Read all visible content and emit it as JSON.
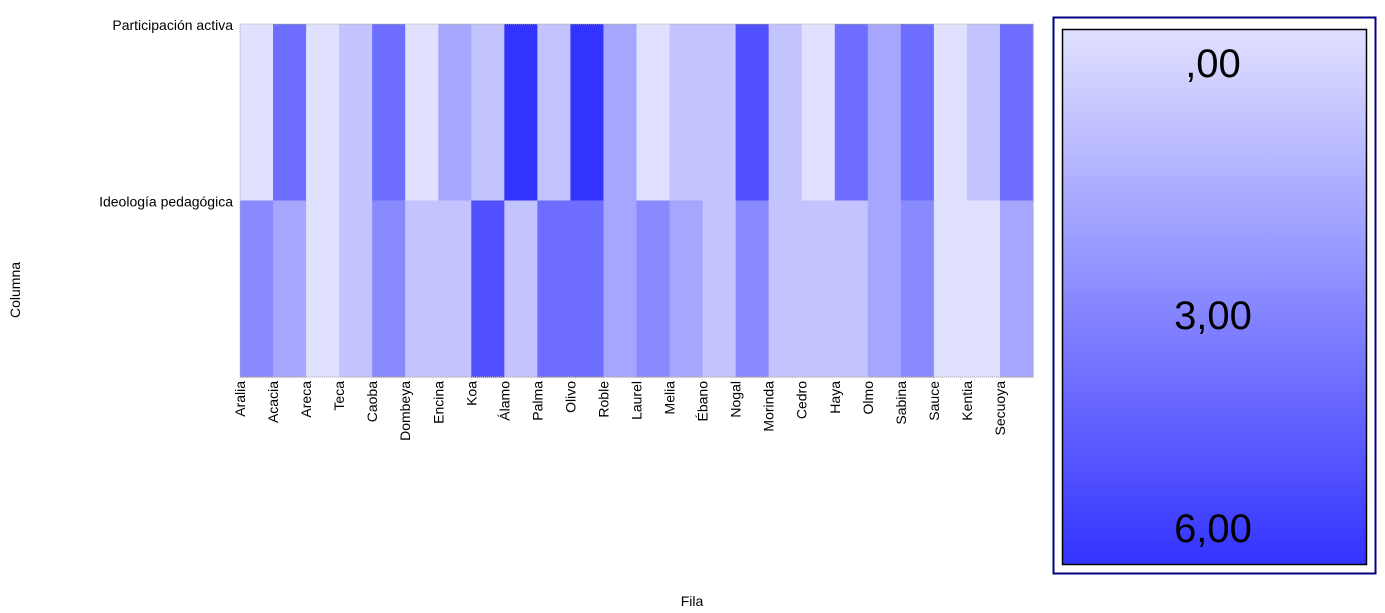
{
  "chart_data": {
    "type": "heatmap",
    "title": "",
    "xlabel": "Fila",
    "ylabel": "Columna",
    "x_categories": [
      "Aralia",
      "Acacia",
      "Areca",
      "Teca",
      "Caoba",
      "Dombeya",
      "Encina",
      "Koa",
      "Álamo",
      "Palma",
      "Olivo",
      "Roble",
      "Laurel",
      "Melia",
      "Ébano",
      "Nogal",
      "Morinda",
      "Cedro",
      "Haya",
      "Olmo",
      "Sabina",
      "Sauce",
      "Kentia",
      "Secuoya"
    ],
    "y_categories": [
      "Participación activa",
      "Ideología pedagógica"
    ],
    "values": [
      [
        0,
        4,
        0,
        1,
        4,
        0,
        2,
        1,
        6,
        1,
        6,
        2,
        0,
        1,
        1,
        5,
        1,
        0,
        4,
        2,
        4,
        0,
        1,
        4
      ],
      [
        3,
        2,
        0,
        1,
        3,
        1,
        1,
        5,
        1,
        4,
        4,
        2,
        3,
        2,
        1,
        3,
        1,
        1,
        1,
        2,
        3,
        0,
        0,
        2
      ]
    ],
    "color_scale": {
      "min": 0,
      "max": 6,
      "min_color": "#e0e0ff",
      "max_color": "#3333ff",
      "tick_labels": [
        ",00",
        "3,00",
        "6,00"
      ],
      "tick_values": [
        0,
        3,
        6
      ]
    },
    "legend_position": "right"
  }
}
